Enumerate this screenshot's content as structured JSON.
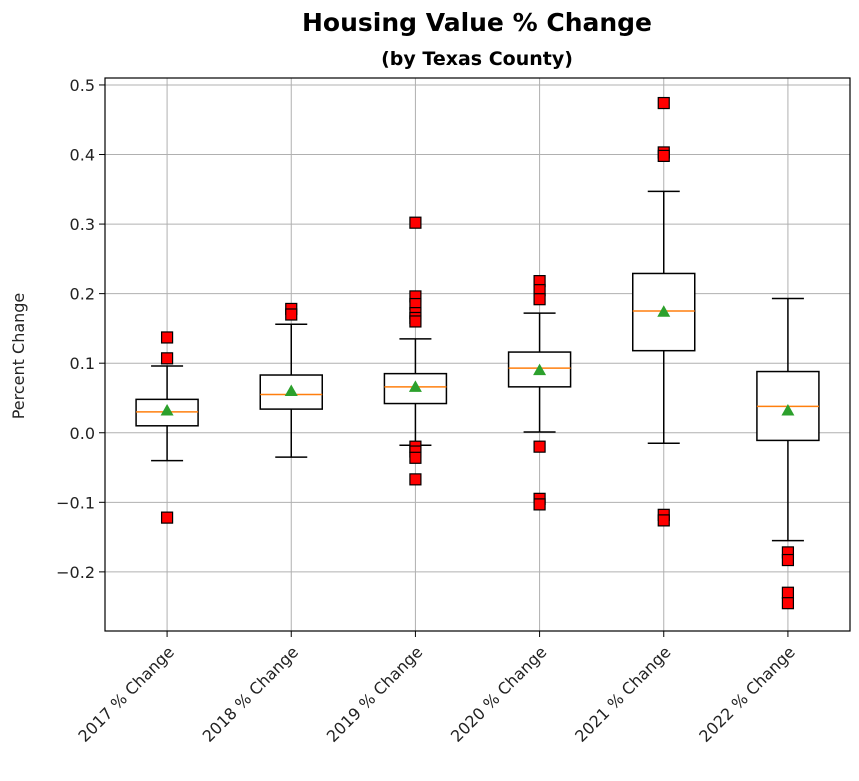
{
  "chart_data": {
    "type": "boxplot",
    "title": "Housing Value % Change",
    "subtitle": "(by Texas County)",
    "xlabel": "",
    "ylabel": "Percent Change",
    "ylim": [
      -0.285,
      0.51
    ],
    "yticks": [
      "−0.2",
      "−0.1",
      "0.0",
      "0.1",
      "0.2",
      "0.3",
      "0.4",
      "0.5"
    ],
    "ytick_values": [
      -0.2,
      -0.1,
      0.0,
      0.1,
      0.2,
      0.3,
      0.4,
      0.5
    ],
    "grid": true,
    "legend": "none",
    "categories": [
      "2017 % Change",
      "2018 % Change",
      "2019 % Change",
      "2020 % Change",
      "2021 % Change",
      "2022 % Change"
    ],
    "boxes": [
      {
        "whisker_low": -0.04,
        "q1": 0.01,
        "median": 0.03,
        "q3": 0.048,
        "whisker_high": 0.096,
        "mean": 0.032,
        "outliers": [
          0.137,
          0.107,
          -0.122
        ]
      },
      {
        "whisker_low": -0.035,
        "q1": 0.034,
        "median": 0.055,
        "q3": 0.083,
        "whisker_high": 0.156,
        "mean": 0.06,
        "outliers": [
          0.178,
          0.17
        ]
      },
      {
        "whisker_low": -0.018,
        "q1": 0.042,
        "median": 0.066,
        "q3": 0.085,
        "whisker_high": 0.135,
        "mean": 0.066,
        "outliers": [
          0.302,
          0.196,
          0.185,
          0.172,
          0.165,
          0.16,
          -0.02,
          -0.027,
          -0.036,
          -0.067
        ]
      },
      {
        "whisker_low": 0.001,
        "q1": 0.066,
        "median": 0.093,
        "q3": 0.116,
        "whisker_high": 0.172,
        "mean": 0.09,
        "outliers": [
          0.218,
          0.205,
          0.192,
          -0.02,
          -0.095,
          -0.103
        ]
      },
      {
        "whisker_low": -0.015,
        "q1": 0.118,
        "median": 0.175,
        "q3": 0.229,
        "whisker_high": 0.347,
        "mean": 0.174,
        "outliers": [
          0.474,
          0.403,
          0.398,
          -0.118,
          -0.126
        ]
      },
      {
        "whisker_low": -0.155,
        "q1": -0.011,
        "median": 0.038,
        "q3": 0.088,
        "whisker_high": 0.193,
        "mean": 0.032,
        "outliers": [
          -0.172,
          -0.183,
          -0.23,
          -0.245
        ]
      }
    ],
    "colors": {
      "box": "#000000",
      "median": "#ff7f0e",
      "mean": "#2ca02c",
      "outlier": "#ff0000",
      "grid": "#b0b0b0"
    }
  }
}
